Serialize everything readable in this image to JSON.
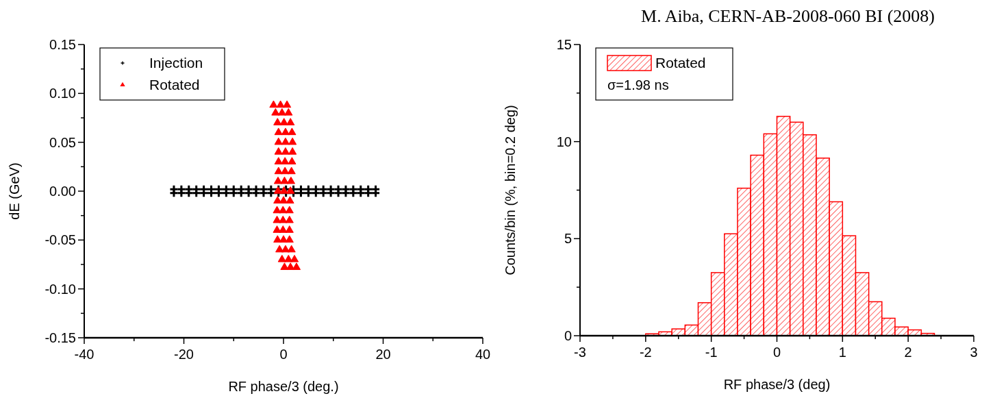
{
  "chart_data": [
    {
      "type": "scatter",
      "xlabel": "RF phase/3 (deg.)",
      "ylabel": "dE (GeV)",
      "legend": "top left",
      "xlim": [
        -40,
        40
      ],
      "xticks": [
        -40,
        {
          "value": -30,
          "label": null
        },
        -20,
        {
          "value": -10,
          "label": null
        },
        0,
        {
          "value": 10,
          "label": null
        },
        20,
        {
          "value": 30,
          "label": null
        },
        40
      ],
      "ylim": [
        -0.15,
        0.15
      ],
      "yticks": [
        {
          "value": -0.15,
          "label": "-0.15"
        },
        {
          "value": -0.125,
          "label": null
        },
        {
          "value": -0.1,
          "label": "-0.10"
        },
        {
          "value": -0.075,
          "label": null
        },
        {
          "value": -0.05,
          "label": "-0.05"
        },
        {
          "value": -0.025,
          "label": null
        },
        {
          "value": 0,
          "label": "0.00"
        },
        {
          "value": 0.025,
          "label": null
        },
        {
          "value": 0.05,
          "label": "0.05"
        },
        {
          "value": 0.075,
          "label": null
        },
        {
          "value": 0.1,
          "label": "0.10"
        },
        {
          "value": 0.125,
          "label": null
        },
        {
          "value": 0.15,
          "label": "0.15"
        }
      ],
      "series": [
        {
          "name": "Injection",
          "color": "#000000",
          "marker": "cross",
          "x": [
            -22,
            -20.5,
            -19,
            -17.5,
            -16,
            -14.5,
            -13,
            -11.5,
            -10,
            -8.5,
            -7,
            -5.5,
            -4,
            -2.5,
            -1,
            0.5,
            2,
            3.5,
            5,
            6.5,
            8,
            9.5,
            11,
            12.5,
            14,
            15.5,
            17,
            18.5,
            -22,
            -20.5,
            -19,
            -17.5,
            -16,
            -14.5,
            -13,
            -11.5,
            -10,
            -8.5,
            -7,
            -5.5,
            -4,
            -2.5,
            -1,
            0.5,
            2,
            3.5,
            5,
            6.5,
            8,
            9.5,
            11,
            12.5,
            14,
            15.5,
            17,
            18.5
          ],
          "values": [
            0.002,
            0.002,
            0.002,
            0.002,
            0.002,
            0.002,
            0.002,
            0.002,
            0.002,
            0.002,
            0.002,
            0.002,
            0.002,
            0.002,
            0.002,
            0.002,
            0.002,
            0.002,
            0.002,
            0.002,
            0.002,
            0.002,
            0.002,
            0.002,
            0.002,
            0.002,
            0.002,
            0.002,
            -0.002,
            -0.002,
            -0.002,
            -0.002,
            -0.002,
            -0.002,
            -0.002,
            -0.002,
            -0.002,
            -0.002,
            -0.002,
            -0.002,
            -0.002,
            -0.002,
            -0.002,
            -0.002,
            -0.002,
            -0.002,
            -0.002,
            -0.002,
            -0.002,
            -0.002,
            -0.002,
            -0.002,
            -0.002,
            -0.002,
            -0.002,
            -0.002
          ]
        },
        {
          "name": "Rotated",
          "color": "#ff0000",
          "marker": "triangle",
          "x": [
            -2.0,
            -0.6,
            0.7,
            -1.6,
            -0.3,
            1.0,
            -1.2,
            0.1,
            1.4,
            -1.0,
            0.4,
            1.7,
            -1.0,
            0.4,
            1.8,
            -1.0,
            0.4,
            1.8,
            -1.0,
            0.3,
            1.7,
            -1.0,
            0.3,
            1.6,
            -1.1,
            0.2,
            1.5,
            -1.1,
            0.1,
            1.4,
            -1.2,
            0.0,
            1.3,
            -1.3,
            -0.1,
            1.2,
            -1.3,
            -0.1,
            1.2,
            -1.3,
            -0.1,
            1.2,
            -1.2,
            0.0,
            1.2,
            -0.8,
            0.4,
            1.6,
            -0.3,
            1.0,
            2.2,
            0.2,
            1.4,
            2.6
          ],
          "values": [
            0.088,
            0.088,
            0.088,
            0.08,
            0.08,
            0.08,
            0.07,
            0.07,
            0.07,
            0.06,
            0.06,
            0.06,
            0.05,
            0.05,
            0.05,
            0.04,
            0.04,
            0.04,
            0.03,
            0.03,
            0.03,
            0.02,
            0.02,
            0.02,
            0.01,
            0.01,
            0.01,
            0.0,
            0.0,
            0.0,
            -0.01,
            -0.01,
            -0.01,
            -0.02,
            -0.02,
            -0.02,
            -0.03,
            -0.03,
            -0.03,
            -0.04,
            -0.04,
            -0.04,
            -0.05,
            -0.05,
            -0.05,
            -0.06,
            -0.06,
            -0.06,
            -0.07,
            -0.07,
            -0.07,
            -0.078,
            -0.078,
            -0.078
          ]
        }
      ]
    },
    {
      "type": "histogram",
      "xlabel": "RF phase/3 (deg)",
      "ylabel": "Counts/bin (%, bin=0.2 deg)",
      "legend": "top left",
      "annotations": [
        "σ=1.98 ns",
        "M. Aiba, CERN-AB-2008-060 BI (2008)"
      ],
      "xlim": [
        -3,
        3
      ],
      "xticks": [
        -3,
        {
          "value": -2.5,
          "label": null
        },
        -2,
        {
          "value": -1.5,
          "label": null
        },
        -1,
        {
          "value": -0.5,
          "label": null
        },
        0,
        {
          "value": 0.5,
          "label": null
        },
        1,
        {
          "value": 1.5,
          "label": null
        },
        2,
        {
          "value": 2.5,
          "label": null
        },
        3
      ],
      "ylim": [
        0,
        15
      ],
      "yticks": [
        0,
        {
          "value": 2.5,
          "label": null
        },
        5,
        {
          "value": 7.5,
          "label": null
        },
        10,
        {
          "value": 12.5,
          "label": null
        },
        15
      ],
      "bins": [
        -2,
        -1.8,
        -1.6,
        -1.4,
        -1.2,
        -1,
        -0.8,
        -0.6,
        -0.4,
        -0.2,
        0,
        0.2,
        0.4,
        0.6,
        0.8,
        1,
        1.2,
        1.4,
        1.6,
        1.8,
        2,
        2.2,
        2.4
      ],
      "series": [
        {
          "name": "Rotated",
          "color": "#ff0000",
          "values": [
            0.1,
            0.2,
            0.35,
            0.55,
            1.7,
            3.25,
            5.25,
            7.6,
            9.3,
            10.4,
            11.3,
            11.0,
            10.35,
            9.15,
            6.9,
            5.15,
            3.25,
            1.75,
            0.9,
            0.45,
            0.3,
            0.12
          ]
        }
      ]
    }
  ]
}
